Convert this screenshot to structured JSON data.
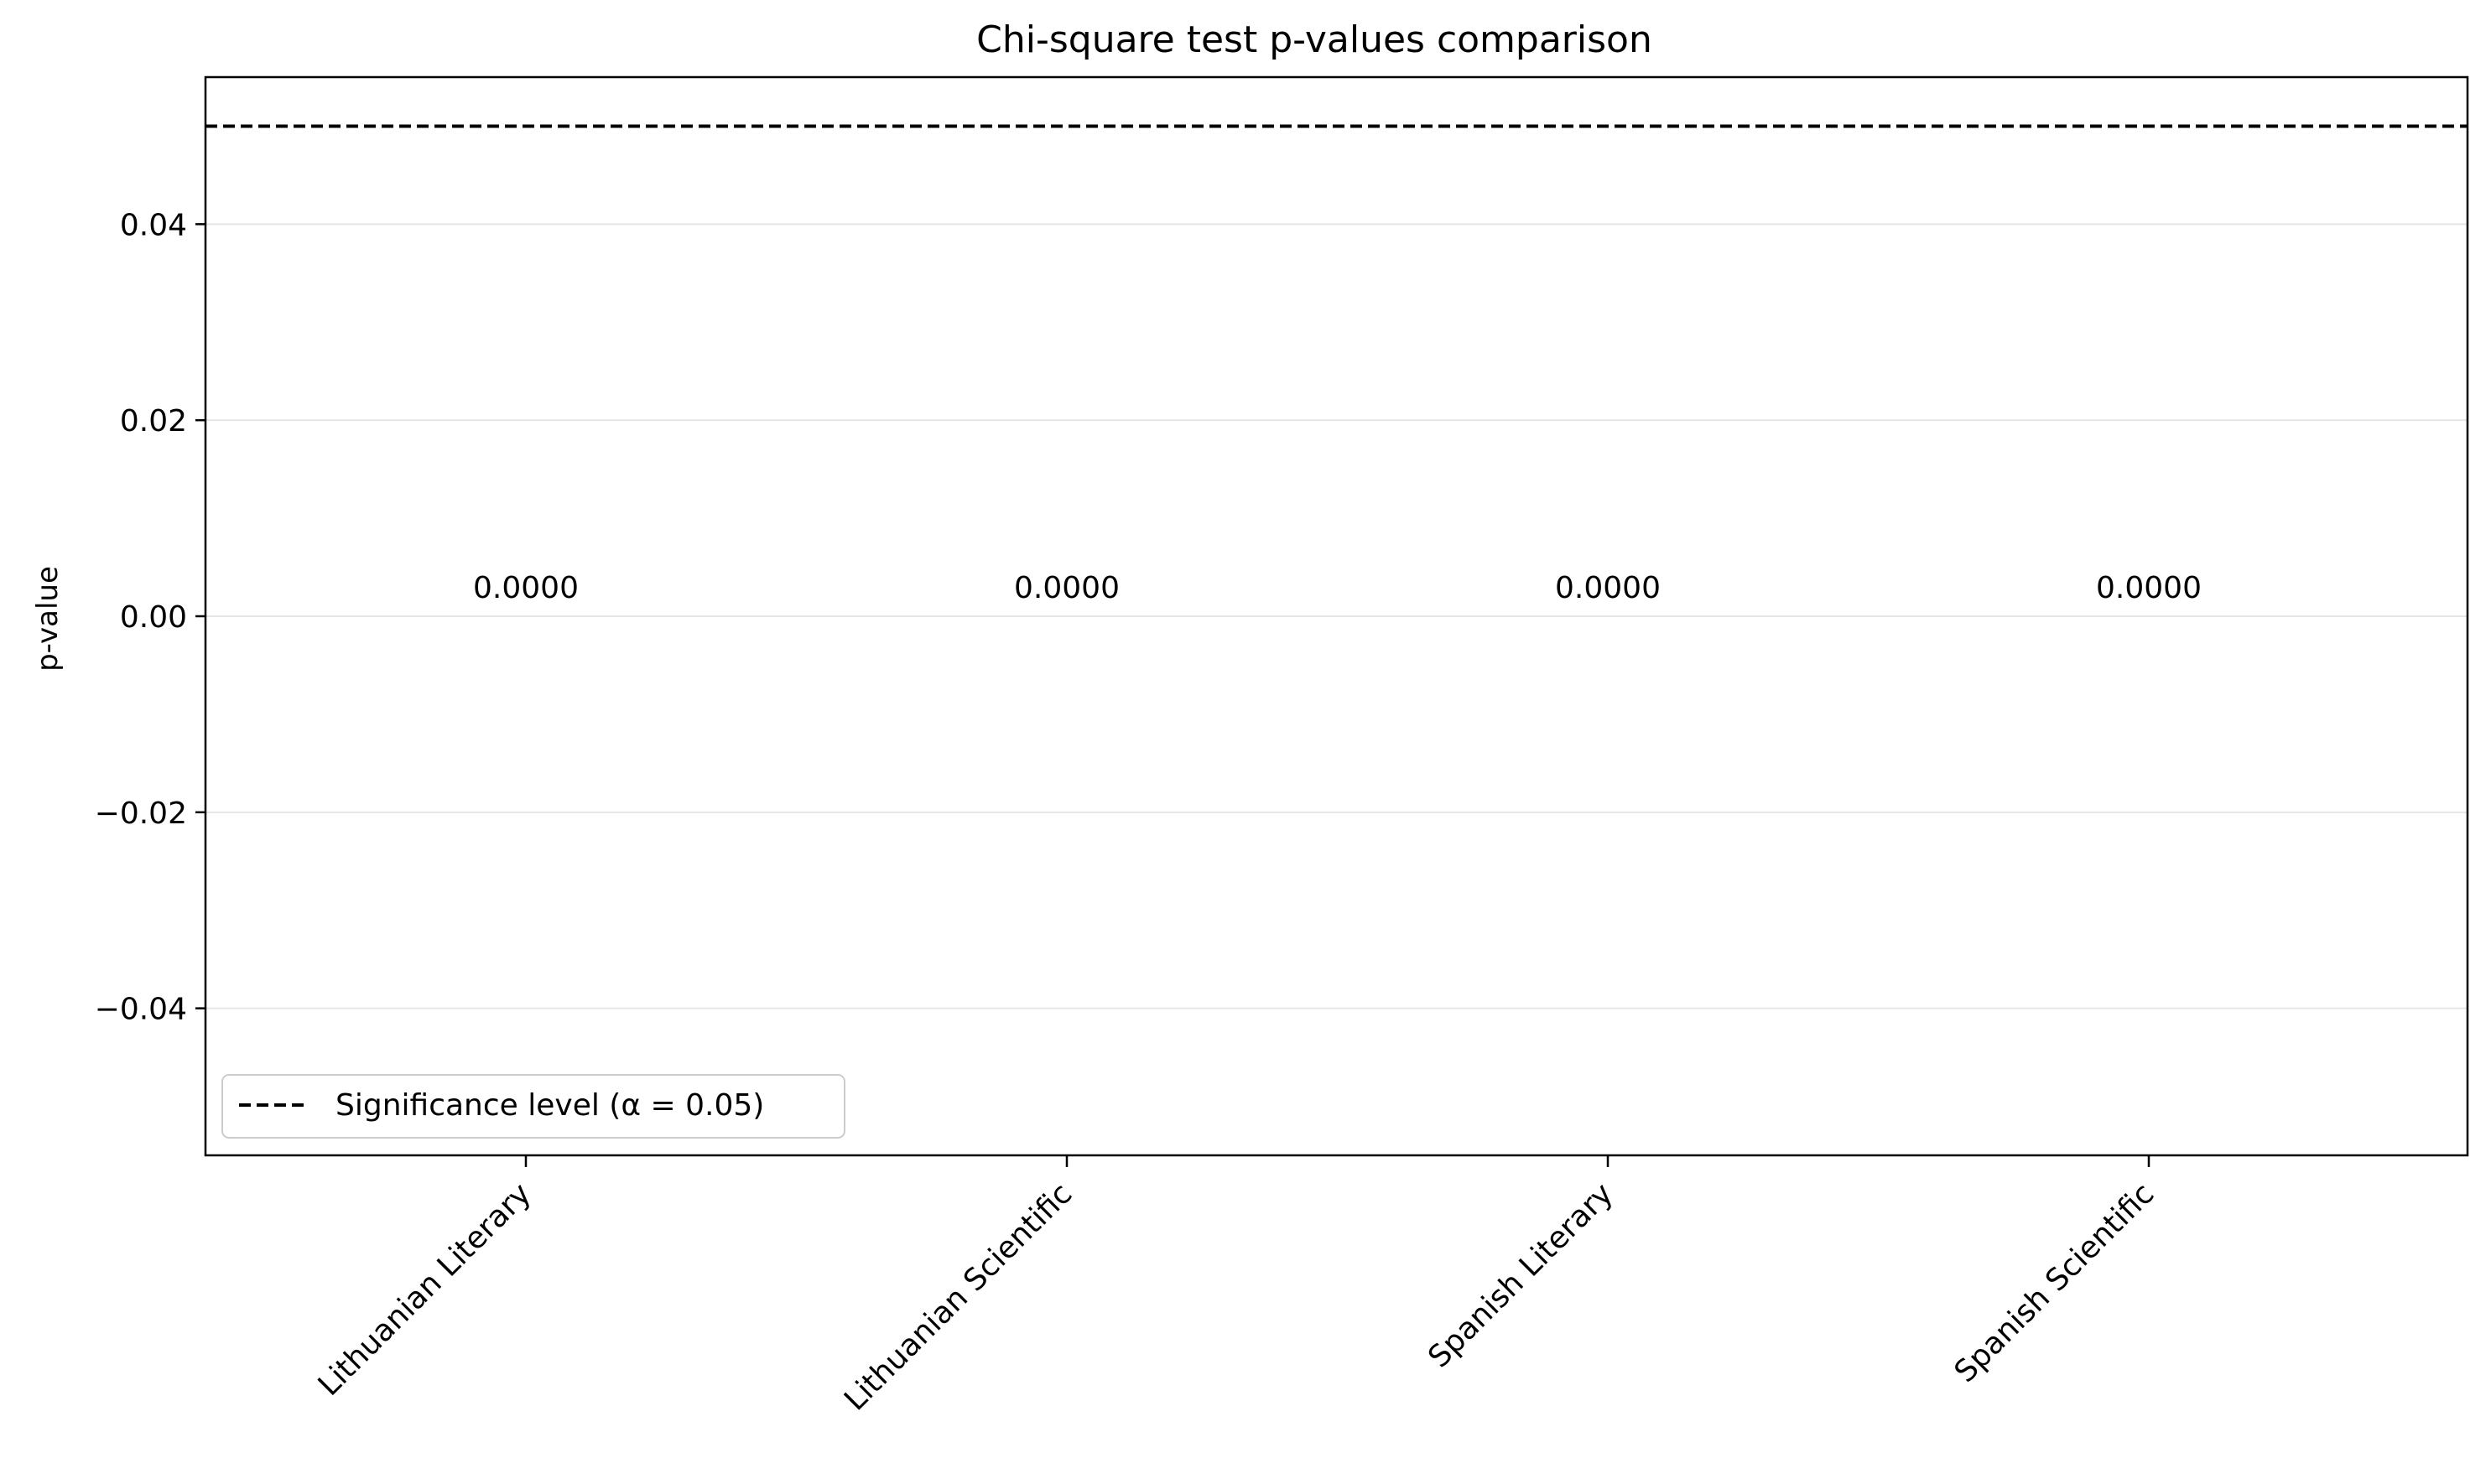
{
  "chart_data": {
    "type": "bar",
    "title": "Chi-square test p-values comparison",
    "xlabel": "",
    "ylabel": "p-value",
    "categories": [
      "Lithuanian Literary",
      "Lithuanian Scientific",
      "Spanish Literary",
      "Spanish Scientific"
    ],
    "values": [
      0.0,
      0.0,
      0.0,
      0.0
    ],
    "value_labels": [
      "0.0000",
      "0.0000",
      "0.0000",
      "0.0000"
    ],
    "ylim": [
      -0.055,
      0.055
    ],
    "yticks": [
      -0.04,
      -0.02,
      0.0,
      0.02,
      0.04
    ],
    "ytick_labels": [
      "−0.04",
      "−0.02",
      "0.00",
      "0.02",
      "0.04"
    ],
    "grid": "y-axis only",
    "reference_line": {
      "y": 0.05,
      "style": "dashed",
      "color": "#000000"
    },
    "legend": {
      "placement": "lower-left",
      "entries": [
        {
          "label": "Significance level (α = 0.05)",
          "style": "dashed"
        }
      ]
    },
    "colors": {
      "reference_line": "#000000",
      "grid": "#e6e6e6",
      "axes": "#000000"
    }
  }
}
